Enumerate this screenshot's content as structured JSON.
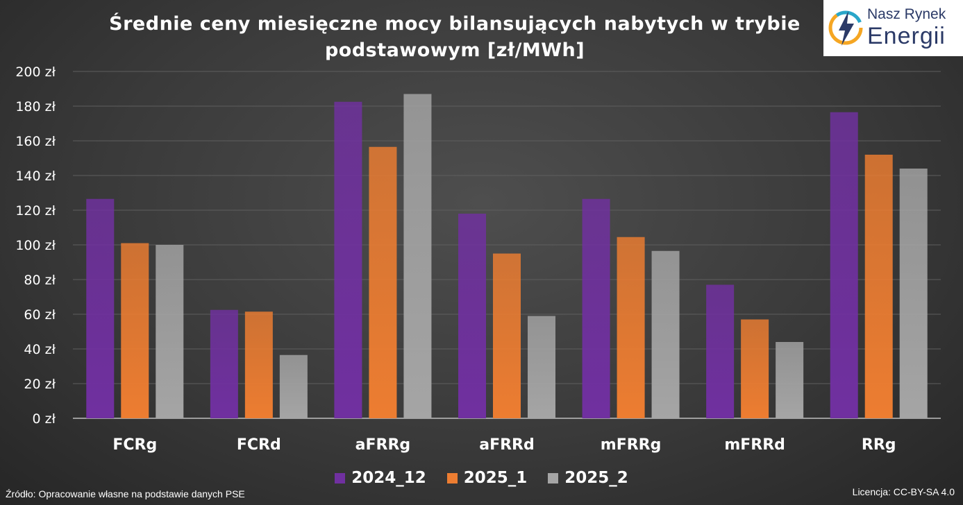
{
  "logo": {
    "line1": "Nasz Rynek",
    "line2": "Energii",
    "icon": "lightning-bolt-icon"
  },
  "footer": {
    "source": "Źródło: Opracowanie własne na podstawie danych PSE",
    "license": "Licencja: CC-BY-SA 4.0"
  },
  "chart_data": {
    "type": "bar",
    "title": "Średnie ceny miesięczne mocy bilansujących nabytych w trybie podstawowym [zł/MWh]",
    "title_lines": [
      "Średnie ceny miesięczne mocy bilansujących nabytych w trybie",
      "podstawowym [zł/MWh]"
    ],
    "categories": [
      "FCRg",
      "FCRd",
      "aFRRg",
      "aFRRd",
      "mFRRg",
      "mFRRd",
      "RRg"
    ],
    "series": [
      {
        "name": "2024_12",
        "color": "#7030a0",
        "values": [
          126.5,
          62.5,
          182.5,
          118,
          126.5,
          77,
          176.5
        ]
      },
      {
        "name": "2025_1",
        "color": "#ed7d31",
        "values": [
          101,
          61.5,
          156.5,
          95,
          104.5,
          57,
          152
        ]
      },
      {
        "name": "2025_2",
        "color": "#a5a5a5",
        "values": [
          100,
          36.5,
          187,
          59,
          96.5,
          44,
          144
        ]
      }
    ],
    "ylim": [
      0,
      200
    ],
    "yticks": [
      0,
      20,
      40,
      60,
      80,
      100,
      120,
      140,
      160,
      180,
      200
    ],
    "ytick_labels": [
      "0 zł",
      "20 zł",
      "40 zł",
      "60 zł",
      "80 zł",
      "100 zł",
      "120 zł",
      "140 zł",
      "160 zł",
      "180 zł",
      "200 zł"
    ],
    "xlabel": "",
    "ylabel": "",
    "grid": true,
    "legend_position": "bottom"
  }
}
